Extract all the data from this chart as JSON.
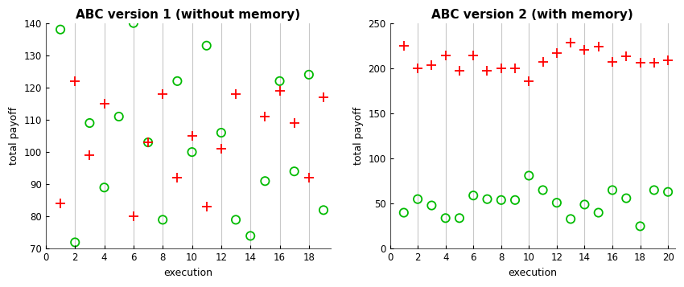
{
  "chart1": {
    "title": "ABC version 1 (without memory)",
    "xlabel": "execution",
    "ylabel": "total payoff",
    "xlim": [
      0,
      19.5
    ],
    "ylim": [
      70,
      140
    ],
    "yticks": [
      70,
      80,
      90,
      100,
      110,
      120,
      130,
      140
    ],
    "xticks": [
      0,
      2,
      4,
      6,
      8,
      10,
      12,
      14,
      16,
      18
    ],
    "grid_x": [
      2,
      4,
      6,
      8,
      10,
      12,
      14,
      16,
      18
    ],
    "abc_x": [
      1,
      2,
      3,
      4,
      6,
      7,
      8,
      9,
      10,
      11,
      12,
      13,
      15,
      16,
      17,
      18,
      19
    ],
    "abc_y": [
      84,
      122,
      99,
      115,
      80,
      103,
      118,
      92,
      105,
      83,
      101,
      118,
      111,
      119,
      109,
      92,
      117
    ],
    "pavlov_x": [
      1,
      2,
      3,
      4,
      5,
      6,
      7,
      8,
      9,
      10,
      11,
      12,
      13,
      14,
      15,
      16,
      17,
      18,
      19
    ],
    "pavlov_y": [
      138,
      72,
      109,
      89,
      111,
      140,
      103,
      79,
      122,
      100,
      133,
      106,
      79,
      74,
      91,
      122,
      94,
      124,
      82
    ]
  },
  "chart2": {
    "title": "ABC version 2 (with memory)",
    "xlabel": "execution",
    "ylabel": "total payoff",
    "xlim": [
      0,
      20.5
    ],
    "ylim": [
      0,
      250
    ],
    "yticks": [
      0,
      50,
      100,
      150,
      200,
      250
    ],
    "xticks": [
      0,
      2,
      4,
      6,
      8,
      10,
      12,
      14,
      16,
      18,
      20
    ],
    "grid_x": [
      2,
      4,
      6,
      8,
      10,
      12,
      14,
      16,
      18,
      20
    ],
    "abc_x": [
      1,
      2,
      3,
      4,
      5,
      6,
      7,
      8,
      9,
      10,
      11,
      12,
      13,
      14,
      15,
      16,
      17,
      18,
      19,
      20
    ],
    "abc_y": [
      225,
      200,
      203,
      214,
      197,
      214,
      197,
      200,
      200,
      186,
      207,
      217,
      228,
      220,
      224,
      207,
      213,
      206,
      206,
      209
    ],
    "pavlov_x": [
      1,
      2,
      3,
      4,
      5,
      6,
      7,
      8,
      9,
      10,
      11,
      12,
      13,
      14,
      15,
      16,
      17,
      18,
      19,
      20
    ],
    "pavlov_y": [
      40,
      55,
      48,
      34,
      34,
      59,
      55,
      54,
      54,
      81,
      65,
      51,
      33,
      49,
      40,
      65,
      56,
      25,
      65,
      63
    ]
  },
  "abc_color": "#ff0000",
  "pavlov_color": "#00bb00",
  "grid_color": "#c8c8c8",
  "title_fontsize": 11,
  "label_fontsize": 9,
  "tick_fontsize": 8.5
}
